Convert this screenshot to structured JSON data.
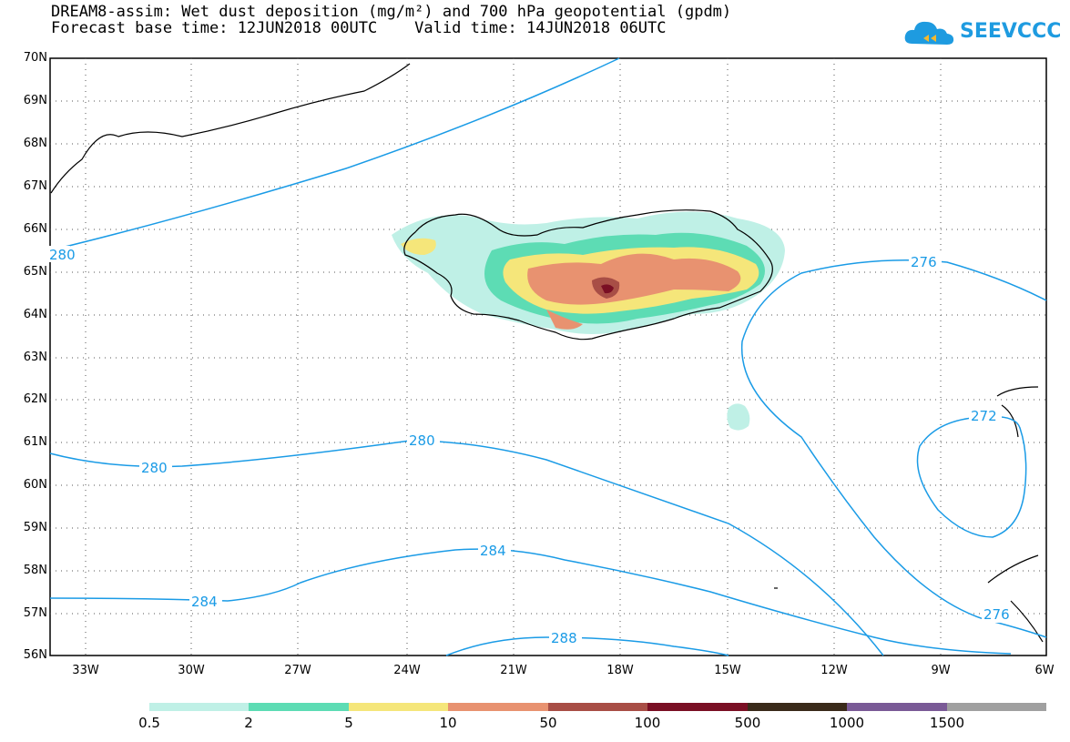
{
  "title": {
    "line1": "DREAM8-assim: Wet dust deposition (mg/m²) and 700 hPa geopotential (gpdm)",
    "line2": "Forecast base time: 12JUN2018 00UTC    Valid time: 14JUN2018 06UTC"
  },
  "logo": {
    "text": "SEEVCCC",
    "color": "#1e9be0"
  },
  "map": {
    "lat_labels": [
      "70N",
      "69N",
      "68N",
      "67N",
      "66N",
      "65N",
      "64N",
      "63N",
      "62N",
      "61N",
      "60N",
      "59N",
      "58N",
      "57N",
      "56N"
    ],
    "lon_labels": [
      "33W",
      "30W",
      "27W",
      "24W",
      "21W",
      "18W",
      "15W",
      "12W",
      "9W",
      "6W"
    ],
    "contour_color": "#1a9be6",
    "contour_labels": [
      "280",
      "276",
      "272",
      "280",
      "280",
      "284",
      "284",
      "288",
      "276"
    ]
  },
  "legend": {
    "colors": [
      "#bff0e6",
      "#5ddcb4",
      "#f5e67a",
      "#e89270",
      "#a84e46",
      "#7a0f24",
      "#3a2a1a",
      "#7a5a96",
      "#a0a0a0"
    ],
    "labels": [
      "0.5",
      "2",
      "5",
      "10",
      "50",
      "100",
      "500",
      "1000",
      "1500"
    ]
  }
}
